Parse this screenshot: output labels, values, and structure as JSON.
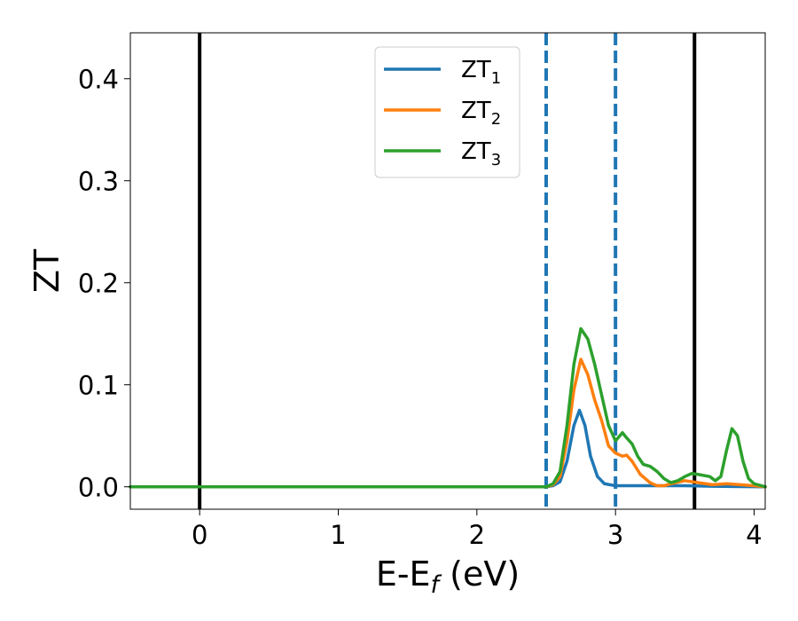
{
  "chart_data": {
    "type": "line",
    "xlabel": {
      "main": "E-E",
      "sub": "f",
      "unit": " (eV)"
    },
    "ylabel": "ZT",
    "xlim": [
      -0.5,
      4.08
    ],
    "ylim": [
      -0.022,
      0.445
    ],
    "xticks": [
      0,
      1,
      2,
      3,
      4
    ],
    "xtick_labels": [
      "0",
      "1",
      "2",
      "3",
      "4"
    ],
    "yticks": [
      0.0,
      0.1,
      0.2,
      0.3,
      0.4
    ],
    "ytick_labels": [
      "0.0",
      "0.1",
      "0.2",
      "0.3",
      "0.4"
    ],
    "grid": false,
    "legend_position": "top-center",
    "vlines": [
      {
        "x": 0.0,
        "style": "solid",
        "color": "#000000"
      },
      {
        "x": 2.5,
        "style": "dashed",
        "color": "#1f77b4"
      },
      {
        "x": 3.0,
        "style": "dashed",
        "color": "#1f77b4"
      },
      {
        "x": 3.57,
        "style": "solid",
        "color": "#000000"
      }
    ],
    "series": [
      {
        "name": "ZT",
        "sub": "1",
        "color": "#1f77b4",
        "points": [
          [
            -0.5,
            0
          ],
          [
            2.45,
            0
          ],
          [
            2.5,
            0
          ],
          [
            2.55,
            0.001
          ],
          [
            2.6,
            0.005
          ],
          [
            2.65,
            0.025
          ],
          [
            2.7,
            0.06
          ],
          [
            2.74,
            0.075
          ],
          [
            2.78,
            0.06
          ],
          [
            2.82,
            0.03
          ],
          [
            2.87,
            0.01
          ],
          [
            2.92,
            0.003
          ],
          [
            3.0,
            0.001
          ],
          [
            3.2,
            0.001
          ],
          [
            3.5,
            0.001
          ],
          [
            3.7,
            0.0005
          ],
          [
            4.08,
            0
          ]
        ]
      },
      {
        "name": "ZT",
        "sub": "2",
        "color": "#ff7f0e",
        "points": [
          [
            -0.5,
            0
          ],
          [
            2.5,
            0
          ],
          [
            2.55,
            0.002
          ],
          [
            2.6,
            0.01
          ],
          [
            2.65,
            0.045
          ],
          [
            2.7,
            0.095
          ],
          [
            2.75,
            0.125
          ],
          [
            2.8,
            0.11
          ],
          [
            2.85,
            0.085
          ],
          [
            2.9,
            0.065
          ],
          [
            2.95,
            0.04
          ],
          [
            3.0,
            0.033
          ],
          [
            3.05,
            0.03
          ],
          [
            3.08,
            0.031
          ],
          [
            3.12,
            0.025
          ],
          [
            3.18,
            0.012
          ],
          [
            3.25,
            0.004
          ],
          [
            3.3,
            0.001
          ],
          [
            3.35,
            0.001
          ],
          [
            3.4,
            0.003
          ],
          [
            3.5,
            0.006
          ],
          [
            3.6,
            0.004
          ],
          [
            3.7,
            0.002
          ],
          [
            3.8,
            0.003
          ],
          [
            3.9,
            0.002
          ],
          [
            4.0,
            0.001
          ],
          [
            4.08,
            0
          ]
        ]
      },
      {
        "name": "ZT",
        "sub": "3",
        "color": "#2ca02c",
        "points": [
          [
            -0.5,
            0
          ],
          [
            2.5,
            0
          ],
          [
            2.55,
            0.003
          ],
          [
            2.6,
            0.015
          ],
          [
            2.65,
            0.06
          ],
          [
            2.7,
            0.12
          ],
          [
            2.75,
            0.155
          ],
          [
            2.8,
            0.145
          ],
          [
            2.85,
            0.12
          ],
          [
            2.9,
            0.09
          ],
          [
            2.95,
            0.06
          ],
          [
            3.0,
            0.045
          ],
          [
            3.05,
            0.053
          ],
          [
            3.08,
            0.048
          ],
          [
            3.12,
            0.042
          ],
          [
            3.16,
            0.03
          ],
          [
            3.2,
            0.022
          ],
          [
            3.25,
            0.02
          ],
          [
            3.3,
            0.015
          ],
          [
            3.35,
            0.008
          ],
          [
            3.4,
            0.004
          ],
          [
            3.45,
            0.006
          ],
          [
            3.5,
            0.01
          ],
          [
            3.55,
            0.013
          ],
          [
            3.6,
            0.012
          ],
          [
            3.68,
            0.01
          ],
          [
            3.72,
            0.006
          ],
          [
            3.76,
            0.01
          ],
          [
            3.8,
            0.035
          ],
          [
            3.84,
            0.057
          ],
          [
            3.88,
            0.05
          ],
          [
            3.92,
            0.025
          ],
          [
            3.96,
            0.008
          ],
          [
            4.0,
            0.003
          ],
          [
            4.08,
            0
          ]
        ]
      }
    ]
  }
}
